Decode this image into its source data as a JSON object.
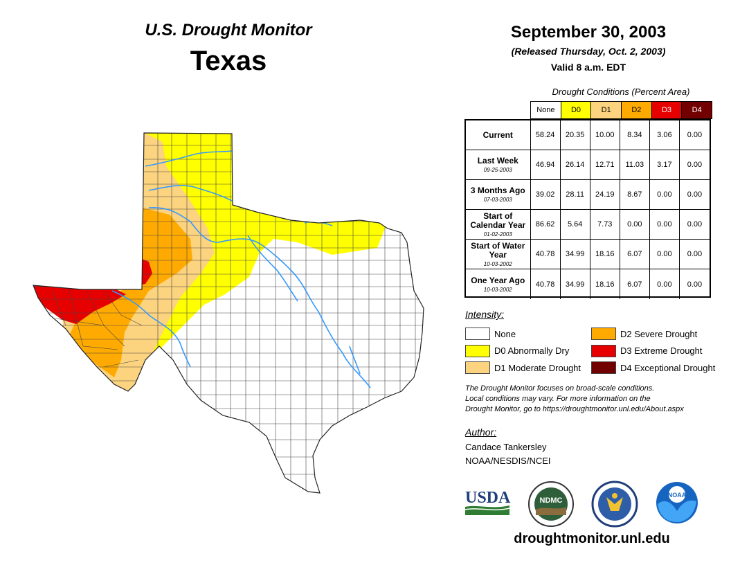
{
  "header": {
    "monitor_title": "U.S. Drought Monitor",
    "state": "Texas",
    "date": "September 30, 2003",
    "released": "(Released Thursday, Oct. 2, 2003)",
    "valid": "Valid 8 a.m. EDT"
  },
  "table": {
    "caption": "Drought Conditions (Percent Area)",
    "columns": [
      {
        "label": "None",
        "color": "#ffffff",
        "text_color": "#000000"
      },
      {
        "label": "D0",
        "color": "#ffff00",
        "text_color": "#000000"
      },
      {
        "label": "D1",
        "color": "#fcd37f",
        "text_color": "#000000"
      },
      {
        "label": "D2",
        "color": "#ffaa00",
        "text_color": "#000000"
      },
      {
        "label": "D3",
        "color": "#e60000",
        "text_color": "#ffffff"
      },
      {
        "label": "D4",
        "color": "#730000",
        "text_color": "#ffffff"
      }
    ],
    "rows": [
      {
        "label": "Current",
        "date": "",
        "values": [
          "58.24",
          "20.35",
          "10.00",
          "8.34",
          "3.06",
          "0.00"
        ]
      },
      {
        "label": "Last Week",
        "date": "09-25-2003",
        "values": [
          "46.94",
          "26.14",
          "12.71",
          "11.03",
          "3.17",
          "0.00"
        ]
      },
      {
        "label": "3 Months Ago",
        "date": "07-03-2003",
        "values": [
          "39.02",
          "28.11",
          "24.19",
          "8.67",
          "0.00",
          "0.00"
        ]
      },
      {
        "label": "Start of Calendar Year",
        "date": "01-02-2003",
        "values": [
          "86.62",
          "5.64",
          "7.73",
          "0.00",
          "0.00",
          "0.00"
        ]
      },
      {
        "label": "Start of Water Year",
        "date": "10-03-2002",
        "values": [
          "40.78",
          "34.99",
          "18.16",
          "6.07",
          "0.00",
          "0.00"
        ]
      },
      {
        "label": "One Year Ago",
        "date": "10-03-2002",
        "values": [
          "40.78",
          "34.99",
          "18.16",
          "6.07",
          "0.00",
          "0.00"
        ]
      }
    ]
  },
  "legend": {
    "title": "Intensity:",
    "items": [
      {
        "label": "None",
        "color": "#ffffff"
      },
      {
        "label": "D0 Abnormally Dry",
        "color": "#ffff00"
      },
      {
        "label": "D1 Moderate Drought",
        "color": "#fcd37f"
      },
      {
        "label": "D2 Severe Drought",
        "color": "#ffaa00"
      },
      {
        "label": "D3 Extreme Drought",
        "color": "#e60000"
      },
      {
        "label": "D4 Exceptional Drought",
        "color": "#730000"
      }
    ]
  },
  "note": [
    "The Drought Monitor focuses on broad-scale conditions.",
    "Local conditions may vary. For more information on the",
    "Drought Monitor, go to https://droughtmonitor.unl.edu/About.aspx"
  ],
  "author": {
    "label": "Author:",
    "name": "Candace Tankersley",
    "org": "NOAA/NESDIS/NCEI"
  },
  "logos": {
    "usda": "USDA",
    "ndmc": "NDMC",
    "noaa": "NOAA"
  },
  "footer_url": "droughtmonitor.unl.edu",
  "colors": {
    "river": "#3399ff",
    "county_line": "#444444"
  }
}
